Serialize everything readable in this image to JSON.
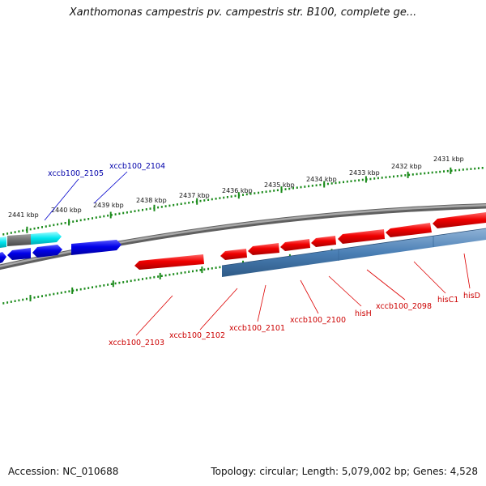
{
  "title": "Xanthomonas campestris pv. campestris str. B100, complete ge...",
  "footer": {
    "accession": "Accession: NC_010688",
    "summary": "Topology: circular; Length: 5,079,002 bp; Genes: 4,528"
  },
  "colors": {
    "forward_gene": "#f00000",
    "reverse_gene": "#0000e8",
    "cyan_gene": "#00e5ee",
    "gray_gene": "#707070",
    "steelblue_band": "#4a7fb5",
    "backbone": "#808080",
    "ticks": "#1a8a1a",
    "forward_label": "#cc0000",
    "reverse_label": "#0000aa"
  },
  "kbp_ticks": [
    "2441 kbp",
    "2440 kbp",
    "2439 kbp",
    "2438 kbp",
    "2437 kbp",
    "2436 kbp",
    "2435 kbp",
    "2434 kbp",
    "2433 kbp",
    "2432 kbp",
    "2431 kbp"
  ],
  "gene_labels_top": [
    "xccb100_2105",
    "xccb100_2104"
  ],
  "gene_labels_bottom": [
    "xccb100_2103",
    "xccb100_2102",
    "xccb100_2101",
    "xccb100_2100",
    "hisH",
    "xccb100_2098",
    "hisC1",
    "hisD"
  ]
}
